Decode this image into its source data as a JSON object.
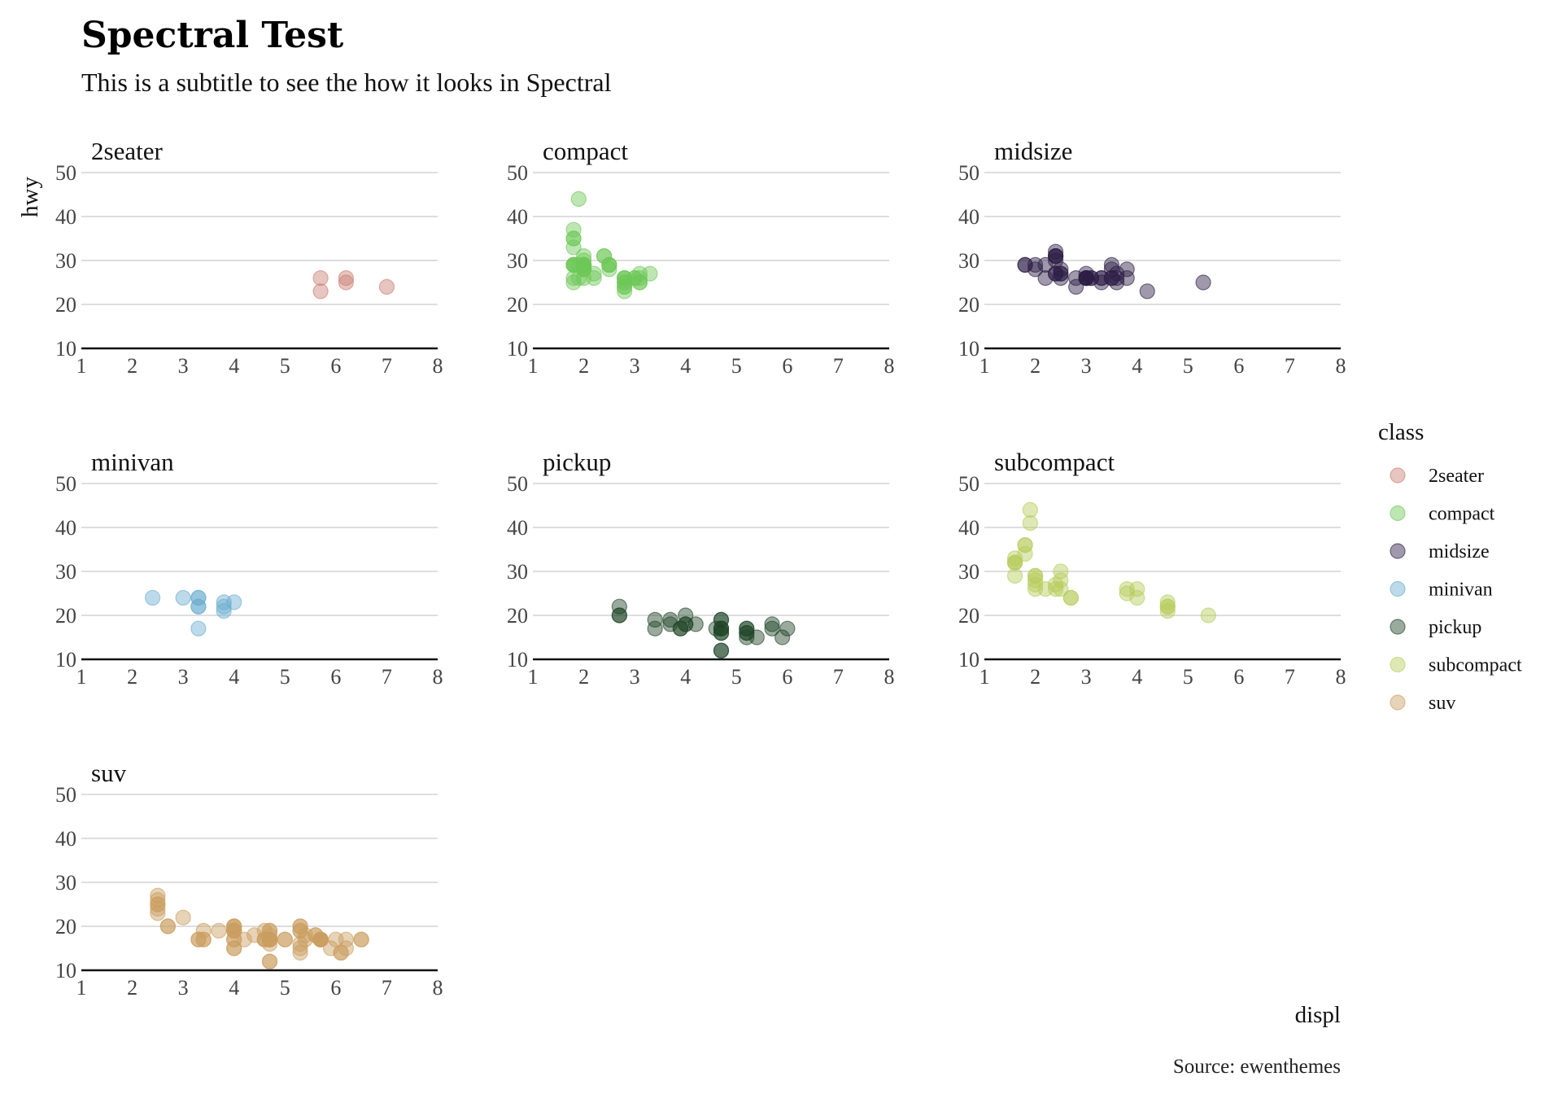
{
  "chart_data": {
    "type": "scatter",
    "title": "Spectral Test",
    "subtitle": "This is a subtitle to see the how it looks in Spectral",
    "xlabel": "displ",
    "ylabel": "hwy",
    "caption": "Source: ewenthemes",
    "xlim": [
      1,
      8
    ],
    "ylim": [
      10,
      50
    ],
    "x_ticks": [
      "1",
      "2",
      "3",
      "4",
      "5",
      "6",
      "7",
      "8"
    ],
    "y_ticks": [
      "10",
      "20",
      "30",
      "40",
      "50"
    ],
    "legend": {
      "title": "class",
      "position": "right",
      "entries": [
        "2seater",
        "compact",
        "midsize",
        "minivan",
        "pickup",
        "subcompact",
        "suv"
      ]
    },
    "colors": {
      "2seater": "#c97f74",
      "compact": "#6cc857",
      "midsize": "#2c1c45",
      "minivan": "#6aadcf",
      "pickup": "#1e4526",
      "subcompact": "#b5cc5c",
      "suv": "#c99d5f"
    },
    "series": [
      {
        "name": "2seater",
        "points": [
          [
            5.7,
            26
          ],
          [
            5.7,
            23
          ],
          [
            6.2,
            26
          ],
          [
            6.2,
            25
          ],
          [
            7.0,
            24
          ]
        ]
      },
      {
        "name": "compact",
        "points": [
          [
            1.8,
            29
          ],
          [
            1.8,
            29
          ],
          [
            2.0,
            31
          ],
          [
            2.0,
            30
          ],
          [
            2.8,
            26
          ],
          [
            2.8,
            26
          ],
          [
            3.1,
            27
          ],
          [
            1.8,
            26
          ],
          [
            1.8,
            25
          ],
          [
            2.0,
            28
          ],
          [
            2.0,
            29
          ],
          [
            2.8,
            25
          ],
          [
            2.8,
            25
          ],
          [
            3.1,
            25
          ],
          [
            3.1,
            25
          ],
          [
            2.2,
            26
          ],
          [
            2.2,
            27
          ],
          [
            2.4,
            31
          ],
          [
            2.4,
            31
          ],
          [
            3.0,
            26
          ],
          [
            3.0,
            26
          ],
          [
            3.3,
            27
          ],
          [
            1.8,
            33
          ],
          [
            1.8,
            35
          ],
          [
            1.8,
            37
          ],
          [
            1.8,
            35
          ],
          [
            1.9,
            44
          ],
          [
            2.0,
            29
          ],
          [
            2.0,
            29
          ],
          [
            2.0,
            28
          ],
          [
            2.0,
            29
          ],
          [
            2.5,
            29
          ],
          [
            2.5,
            29
          ],
          [
            2.8,
            23
          ],
          [
            2.8,
            24
          ],
          [
            1.9,
            29
          ],
          [
            1.9,
            26
          ],
          [
            2.0,
            26
          ],
          [
            2.0,
            29
          ],
          [
            2.5,
            28
          ],
          [
            2.5,
            29
          ],
          [
            1.8,
            29
          ],
          [
            1.8,
            29
          ],
          [
            2.0,
            28
          ],
          [
            2.0,
            28
          ],
          [
            2.8,
            24
          ],
          [
            2.8,
            26
          ],
          [
            3.1,
            26
          ]
        ]
      },
      {
        "name": "midsize",
        "points": [
          [
            2.4,
            27
          ],
          [
            2.4,
            30
          ],
          [
            3.1,
            26
          ],
          [
            3.5,
            29
          ],
          [
            3.6,
            26
          ],
          [
            2.4,
            31
          ],
          [
            3.0,
            26
          ],
          [
            3.3,
            26
          ],
          [
            3.3,
            26
          ],
          [
            3.5,
            28
          ],
          [
            3.8,
            26
          ],
          [
            3.8,
            28
          ],
          [
            4.2,
            23
          ],
          [
            5.3,
            25
          ],
          [
            2.4,
            31
          ],
          [
            2.4,
            32
          ],
          [
            3.0,
            27
          ],
          [
            3.0,
            26
          ],
          [
            3.5,
            26
          ],
          [
            1.8,
            29
          ],
          [
            1.8,
            29
          ],
          [
            2.0,
            28
          ],
          [
            2.0,
            29
          ],
          [
            2.8,
            26
          ],
          [
            2.8,
            24
          ],
          [
            3.1,
            26
          ],
          [
            2.5,
            26
          ],
          [
            2.5,
            28
          ],
          [
            3.6,
            27
          ],
          [
            3.6,
            25
          ],
          [
            2.2,
            26
          ],
          [
            2.2,
            29
          ],
          [
            2.4,
            27
          ],
          [
            2.4,
            31
          ],
          [
            3.0,
            26
          ],
          [
            3.0,
            26
          ],
          [
            3.5,
            26
          ],
          [
            2.5,
            27
          ],
          [
            2.5,
            27
          ],
          [
            3.0,
            26
          ],
          [
            3.3,
            25
          ]
        ]
      },
      {
        "name": "minivan",
        "points": [
          [
            2.4,
            24
          ],
          [
            3.0,
            24
          ],
          [
            3.3,
            22
          ],
          [
            3.3,
            22
          ],
          [
            3.3,
            24
          ],
          [
            3.3,
            24
          ],
          [
            3.3,
            17
          ],
          [
            3.8,
            22
          ],
          [
            3.8,
            21
          ],
          [
            3.8,
            23
          ],
          [
            4.0,
            23
          ]
        ]
      },
      {
        "name": "pickup",
        "points": [
          [
            3.7,
            19
          ],
          [
            3.7,
            18
          ],
          [
            3.9,
            17
          ],
          [
            3.9,
            17
          ],
          [
            4.7,
            19
          ],
          [
            4.7,
            19
          ],
          [
            4.7,
            12
          ],
          [
            5.2,
            17
          ],
          [
            5.2,
            15
          ],
          [
            5.7,
            17
          ],
          [
            5.9,
            15
          ],
          [
            4.7,
            17
          ],
          [
            4.7,
            17
          ],
          [
            4.7,
            16
          ],
          [
            4.7,
            12
          ],
          [
            4.7,
            17
          ],
          [
            5.2,
            17
          ],
          [
            5.2,
            16
          ],
          [
            5.7,
            18
          ],
          [
            6.0,
            17
          ],
          [
            4.2,
            18
          ],
          [
            2.7,
            20
          ],
          [
            2.7,
            20
          ],
          [
            2.7,
            22
          ],
          [
            3.4,
            17
          ],
          [
            3.4,
            19
          ],
          [
            4.0,
            18
          ],
          [
            4.0,
            20
          ],
          [
            4.6,
            17
          ],
          [
            5.4,
            15
          ],
          [
            4.0,
            18
          ],
          [
            4.7,
            16
          ],
          [
            5.2,
            16
          ]
        ]
      },
      {
        "name": "subcompact",
        "points": [
          [
            3.8,
            26
          ],
          [
            3.8,
            25
          ],
          [
            4.0,
            26
          ],
          [
            4.0,
            24
          ],
          [
            4.6,
            21
          ],
          [
            4.6,
            22
          ],
          [
            4.6,
            23
          ],
          [
            4.6,
            22
          ],
          [
            5.4,
            20
          ],
          [
            1.6,
            33
          ],
          [
            1.6,
            32
          ],
          [
            1.6,
            32
          ],
          [
            1.6,
            29
          ],
          [
            1.6,
            32
          ],
          [
            1.8,
            34
          ],
          [
            1.8,
            36
          ],
          [
            1.8,
            36
          ],
          [
            2.0,
            29
          ],
          [
            2.4,
            26
          ],
          [
            2.4,
            27
          ],
          [
            2.5,
            30
          ],
          [
            2.5,
            26
          ],
          [
            2.0,
            29
          ],
          [
            2.0,
            27
          ],
          [
            2.0,
            26
          ],
          [
            2.0,
            28
          ],
          [
            2.7,
            24
          ],
          [
            2.2,
            26
          ],
          [
            1.9,
            44
          ],
          [
            1.9,
            41
          ],
          [
            2.5,
            28
          ],
          [
            2.7,
            24
          ]
        ]
      },
      {
        "name": "suv",
        "points": [
          [
            5.3,
            20
          ],
          [
            5.3,
            15
          ],
          [
            5.3,
            20
          ],
          [
            5.7,
            17
          ],
          [
            6.0,
            17
          ],
          [
            5.7,
            17
          ],
          [
            5.7,
            17
          ],
          [
            6.2,
            15
          ],
          [
            6.2,
            17
          ],
          [
            6.5,
            17
          ],
          [
            4.0,
            17
          ],
          [
            4.7,
            17
          ],
          [
            4.7,
            18
          ],
          [
            4.7,
            17
          ],
          [
            5.7,
            17
          ],
          [
            6.1,
            14
          ],
          [
            4.0,
            19
          ],
          [
            4.0,
            19
          ],
          [
            4.6,
            17
          ],
          [
            5.0,
            17
          ],
          [
            4.2,
            17
          ],
          [
            4.4,
            18
          ],
          [
            4.6,
            17
          ],
          [
            5.4,
            17
          ],
          [
            5.4,
            18
          ],
          [
            4.0,
            19
          ],
          [
            4.0,
            19
          ],
          [
            4.6,
            17
          ],
          [
            5.0,
            17
          ],
          [
            4.7,
            19
          ],
          [
            4.7,
            19
          ],
          [
            4.7,
            12
          ],
          [
            5.7,
            17
          ],
          [
            6.1,
            14
          ],
          [
            4.7,
            17
          ],
          [
            4.7,
            17
          ],
          [
            4.7,
            16
          ],
          [
            4.7,
            12
          ],
          [
            4.7,
            17
          ],
          [
            5.3,
            16
          ],
          [
            5.3,
            19
          ],
          [
            5.3,
            14
          ],
          [
            5.3,
            19
          ],
          [
            5.7,
            17
          ],
          [
            6.5,
            17
          ],
          [
            2.5,
            25
          ],
          [
            2.5,
            24
          ],
          [
            2.5,
            27
          ],
          [
            2.5,
            25
          ],
          [
            2.5,
            26
          ],
          [
            2.5,
            23
          ],
          [
            2.7,
            20
          ],
          [
            2.7,
            20
          ],
          [
            3.0,
            22
          ],
          [
            3.4,
            17
          ],
          [
            3.4,
            19
          ],
          [
            4.0,
            20
          ],
          [
            4.0,
            17
          ],
          [
            4.0,
            20
          ],
          [
            4.0,
            15
          ],
          [
            4.0,
            15
          ],
          [
            4.0,
            20
          ],
          [
            3.7,
            19
          ],
          [
            3.3,
            17
          ],
          [
            3.3,
            17
          ],
          [
            3.4,
            17
          ],
          [
            4.6,
            19
          ],
          [
            5.9,
            15
          ],
          [
            5.6,
            18
          ],
          [
            5.6,
            18
          ]
        ]
      }
    ]
  }
}
